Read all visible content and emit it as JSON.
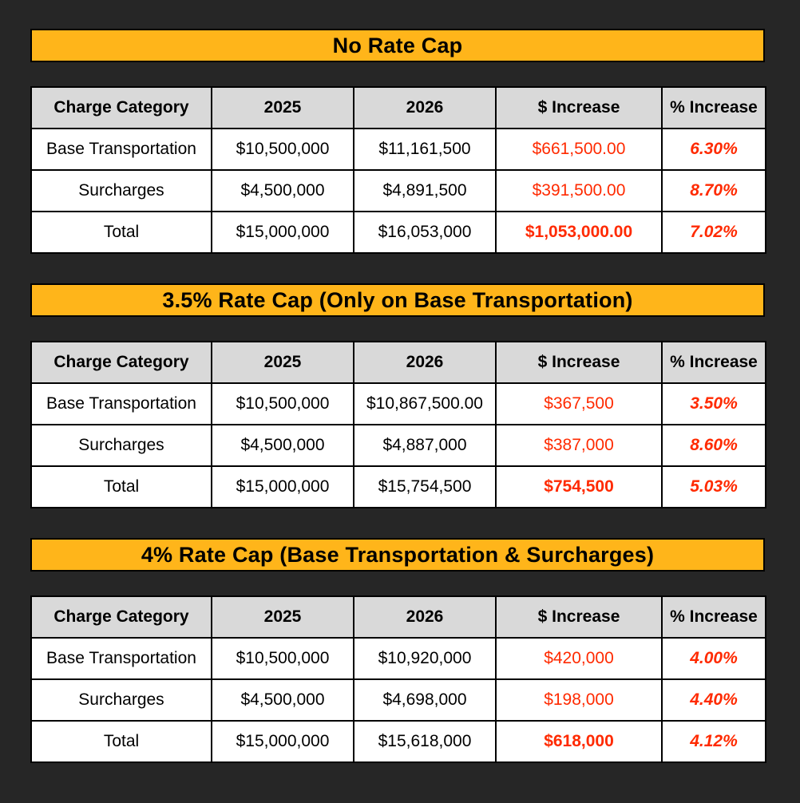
{
  "columns": [
    "Charge Category",
    "2025",
    "2026",
    "$ Increase",
    "% Increase"
  ],
  "sections": [
    {
      "title": "No Rate Cap",
      "rows": [
        {
          "category": "Base Transportation",
          "y2025": "$10,500,000",
          "y2026": "$11,161,500",
          "increase": "$661,500.00",
          "pct": "6.30%"
        },
        {
          "category": "Surcharges",
          "y2025": "$4,500,000",
          "y2026": "$4,891,500",
          "increase": "$391,500.00",
          "pct": "8.70%"
        },
        {
          "category": "Total",
          "y2025": "$15,000,000",
          "y2026": "$16,053,000",
          "increase": "$1,053,000.00",
          "pct": "7.02%"
        }
      ]
    },
    {
      "title": "3.5% Rate Cap (Only on Base Transportation)",
      "rows": [
        {
          "category": "Base Transportation",
          "y2025": "$10,500,000",
          "y2026": "$10,867,500.00",
          "increase": "$367,500",
          "pct": "3.50%"
        },
        {
          "category": "Surcharges",
          "y2025": "$4,500,000",
          "y2026": "$4,887,000",
          "increase": "$387,000",
          "pct": "8.60%"
        },
        {
          "category": "Total",
          "y2025": "$15,000,000",
          "y2026": "$15,754,500",
          "increase": "$754,500",
          "pct": "5.03%"
        }
      ]
    },
    {
      "title": "4% Rate Cap (Base Transportation & Surcharges)",
      "rows": [
        {
          "category": "Base Transportation",
          "y2025": "$10,500,000",
          "y2026": "$10,920,000",
          "increase": "$420,000",
          "pct": "4.00%"
        },
        {
          "category": "Surcharges",
          "y2025": "$4,500,000",
          "y2026": "$4,698,000",
          "increase": "$198,000",
          "pct": "4.40%"
        },
        {
          "category": "Total",
          "y2025": "$15,000,000",
          "y2026": "$15,618,000",
          "increase": "$618,000",
          "pct": "4.12%"
        }
      ]
    }
  ],
  "colors": {
    "background": "#262626",
    "banner": "#FFB51A",
    "header_fill": "#d9d9d9",
    "increase_text": "#ff2a00"
  }
}
